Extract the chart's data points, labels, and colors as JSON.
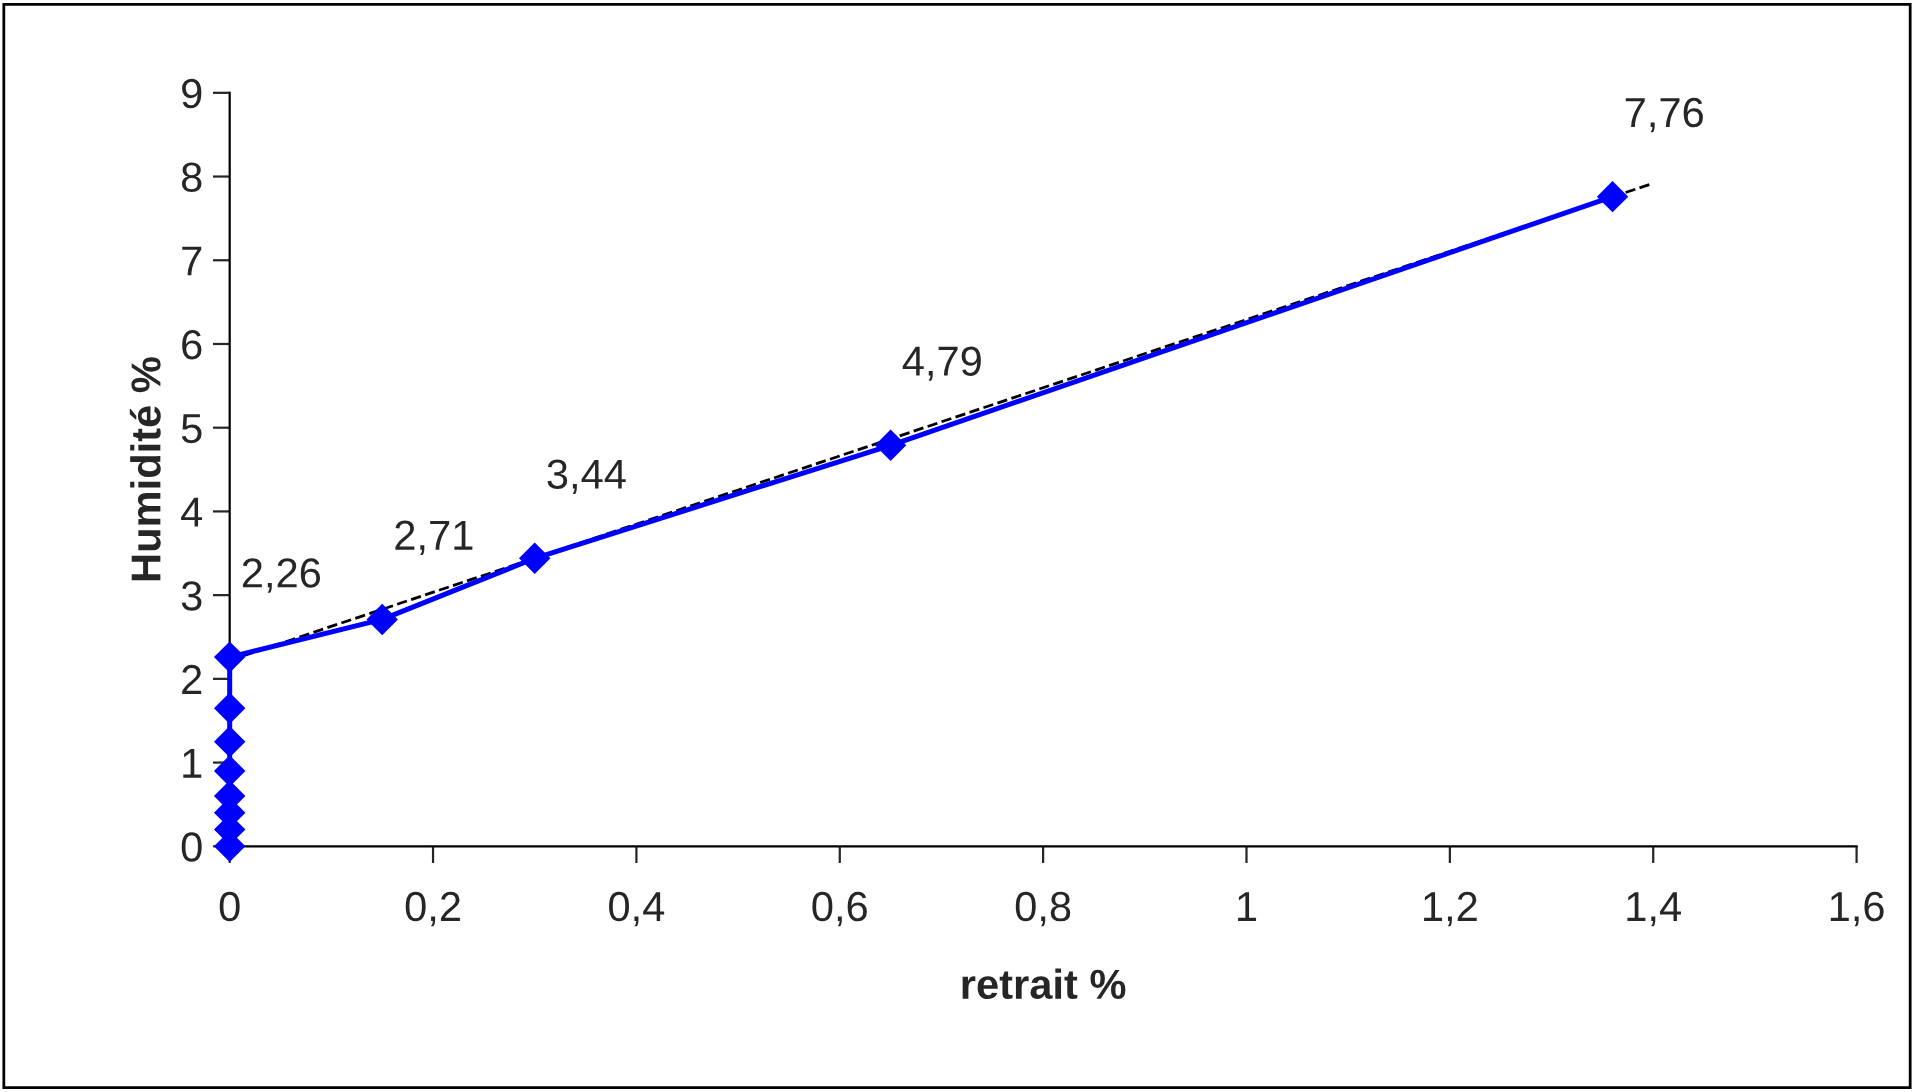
{
  "chart_data": {
    "type": "line",
    "xlabel": "retrait %",
    "ylabel": "Humidité %",
    "xlim": [
      0,
      1.6
    ],
    "ylim": [
      0,
      9
    ],
    "xticks": [
      0,
      {
        "value": 0.2,
        "label": "0,2"
      },
      {
        "value": 0.4,
        "label": "0,4"
      },
      {
        "value": 0.6,
        "label": "0,6"
      },
      {
        "value": 0.8,
        "label": "0,8"
      },
      1,
      {
        "value": 1.2,
        "label": "1,2"
      },
      {
        "value": 1.4,
        "label": "1,4"
      },
      {
        "value": 1.6,
        "label": "1,6"
      }
    ],
    "yticks": [
      0,
      1,
      2,
      3,
      4,
      5,
      6,
      7,
      8,
      9
    ],
    "grid": false,
    "series": [
      {
        "color": "#0000ff",
        "marker": "diamond",
        "line_style": "solid",
        "x": [
          0,
          0,
          0,
          0,
          0,
          0,
          0,
          0,
          0.15,
          0.3,
          0.65,
          1.36
        ],
        "values": [
          0,
          0.2,
          0.4,
          0.6,
          0.9,
          1.25,
          1.65,
          2.26,
          2.71,
          3.44,
          4.79,
          7.76
        ],
        "value_labels": [
          null,
          null,
          null,
          null,
          null,
          null,
          null,
          "2,26",
          "2,71",
          "3,44",
          "4,79",
          "7,76"
        ]
      },
      {
        "color": "#000000",
        "marker": "none",
        "line_style": "dashed",
        "x": [
          0,
          1.4
        ],
        "values": [
          2.22,
          7.92
        ]
      }
    ]
  }
}
